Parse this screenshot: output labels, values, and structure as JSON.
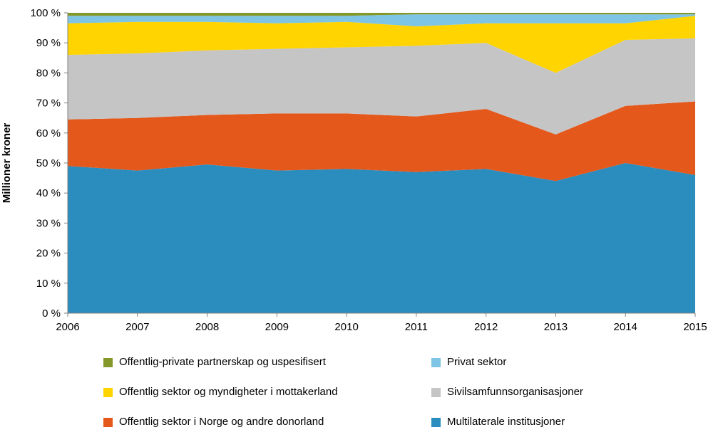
{
  "chart_data": {
    "type": "area",
    "stacked": true,
    "percent": true,
    "title": "",
    "xlabel": "",
    "ylabel": "Millioner kroner",
    "x": [
      2006,
      2007,
      2008,
      2009,
      2010,
      2011,
      2012,
      2013,
      2014,
      2015
    ],
    "ylim": [
      0,
      100
    ],
    "y_ticks": [
      "0 %",
      "10 %",
      "20 %",
      "30 %",
      "40 %",
      "50 %",
      "60 %",
      "70 %",
      "80 %",
      "90 %",
      "100 %"
    ],
    "grid": false,
    "legend_position": "bottom",
    "series": [
      {
        "name": "Multilaterale institusjoner",
        "color": "#2B8CBE",
        "values": [
          49,
          47.5,
          49.5,
          47.5,
          48,
          47,
          48,
          44,
          50,
          46
        ]
      },
      {
        "name": "Offentlig sektor i Norge og andre donorland",
        "color": "#E4581C",
        "values": [
          15.5,
          17.5,
          16.5,
          19,
          18.5,
          18.5,
          20,
          15.5,
          19,
          24.5
        ]
      },
      {
        "name": "Sivilsamfunnsorganisasjoner",
        "color": "#C5C5C5",
        "values": [
          21.5,
          21.5,
          21.5,
          21.5,
          22,
          23.5,
          22,
          20.5,
          22,
          21
        ]
      },
      {
        "name": "Offentlig sektor og myndigheter i mottakerland",
        "color": "#FFD400",
        "values": [
          10.5,
          10.5,
          9.5,
          8.5,
          8.5,
          6.5,
          6.5,
          16.5,
          5.5,
          7.5
        ]
      },
      {
        "name": "Privat sektor",
        "color": "#7EC4E4",
        "values": [
          2.5,
          2,
          2,
          2.5,
          2,
          4,
          3,
          3,
          3,
          0.5
        ]
      },
      {
        "name": "Offentlig-private partnerskap og uspesifisert",
        "color": "#84982A",
        "values": [
          1,
          1,
          1,
          1,
          1,
          0.5,
          0.5,
          0.5,
          0.5,
          0.5
        ]
      }
    ]
  }
}
